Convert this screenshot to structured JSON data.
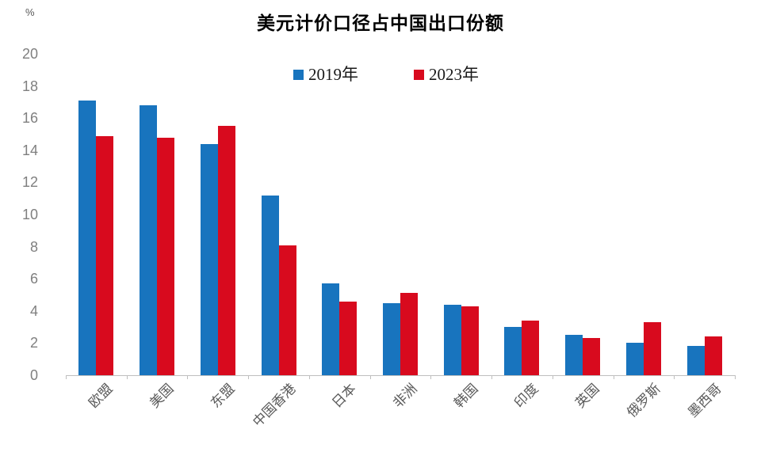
{
  "chart_data": {
    "type": "bar",
    "title": "美元计价口径占中国出口份额",
    "unit_label": "%",
    "categories": [
      "欧盟",
      "美国",
      "东盟",
      "中国香港",
      "日本",
      "非洲",
      "韩国",
      "印度",
      "英国",
      "俄罗斯",
      "墨西哥"
    ],
    "series": [
      {
        "name": "2019年",
        "color": "#1874be",
        "values": [
          17.1,
          16.8,
          14.4,
          11.2,
          5.7,
          4.5,
          4.4,
          3.0,
          2.5,
          2.0,
          1.8
        ]
      },
      {
        "name": "2023年",
        "color": "#d80a1e",
        "values": [
          14.9,
          14.8,
          15.5,
          8.1,
          4.6,
          5.1,
          4.3,
          3.4,
          2.3,
          3.3,
          2.4
        ]
      }
    ],
    "ylim": [
      0,
      20
    ],
    "yticks": [
      0,
      2,
      4,
      6,
      8,
      10,
      12,
      14,
      16,
      18,
      20
    ],
    "grid": false,
    "legend_position": "top-center",
    "axis_color": "#bfbfbf",
    "ytick_label_color": "#7f7f7f",
    "category_label_color": "#595959",
    "category_label_rotation_deg": -45
  }
}
